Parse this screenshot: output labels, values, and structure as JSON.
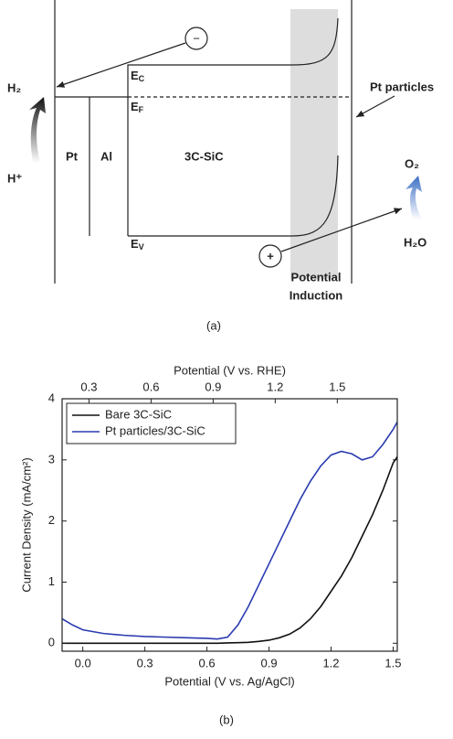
{
  "diagram": {
    "h2": "H₂",
    "h_plus": "H⁺",
    "pt": "Pt",
    "al": "Al",
    "sic": "3C-SiC",
    "ec": {
      "base": "E",
      "sub": "C"
    },
    "ef": {
      "base": "E",
      "sub": "F"
    },
    "ev": {
      "base": "E",
      "sub": "V"
    },
    "pt_particles": "Pt particles",
    "o2": "O₂",
    "h2o": "H₂O",
    "minus": "−",
    "plus": "+",
    "potential_induction": [
      "Potential",
      "Induction"
    ],
    "caption": "(a)"
  },
  "chart_data": {
    "type": "line",
    "caption": "(b)",
    "xlabel": "Potential (V vs. Ag/AgCl)",
    "x2label": "Potential (V vs. RHE)",
    "ylabel": "Current Density (mA/cm²)",
    "x": [
      -0.1,
      -0.05,
      0,
      0.1,
      0.2,
      0.3,
      0.4,
      0.5,
      0.6,
      0.65,
      0.7,
      0.75,
      0.8,
      0.85,
      0.9,
      0.95,
      1.0,
      1.05,
      1.1,
      1.15,
      1.2,
      1.25,
      1.3,
      1.35,
      1.4,
      1.45,
      1.5,
      1.52
    ],
    "series": [
      {
        "name": "Bare 3C-SiC",
        "color": "#111111",
        "values": [
          0,
          0,
          0,
          0,
          0,
          0,
          0,
          0,
          0,
          0,
          0.005,
          0.01,
          0.015,
          0.03,
          0.05,
          0.09,
          0.15,
          0.25,
          0.4,
          0.6,
          0.85,
          1.1,
          1.4,
          1.75,
          2.1,
          2.5,
          2.95,
          3.05
        ]
      },
      {
        "name": "Pt particles/3C-SiC",
        "color": "#2a3bb0",
        "values": [
          0.4,
          0.3,
          0.22,
          0.16,
          0.13,
          0.11,
          0.1,
          0.09,
          0.08,
          0.07,
          0.1,
          0.3,
          0.6,
          0.95,
          1.3,
          1.65,
          2.0,
          2.35,
          2.65,
          2.9,
          3.08,
          3.14,
          3.1,
          3.0,
          3.05,
          3.25,
          3.5,
          3.62
        ]
      }
    ],
    "xlim": [
      -0.1,
      1.52
    ],
    "xticks": [
      {
        "value": 0,
        "label": "0.0"
      },
      0.3,
      0.6,
      0.9,
      1.2,
      1.5
    ],
    "x2lim": [
      0.17,
      1.79
    ],
    "x2ticks": [
      0.3,
      0.6,
      0.9,
      1.2,
      1.5
    ],
    "ylim": [
      -0.13,
      4
    ],
    "yticks": [
      0,
      1,
      2,
      3,
      4
    ],
    "legend": "upper-left"
  }
}
